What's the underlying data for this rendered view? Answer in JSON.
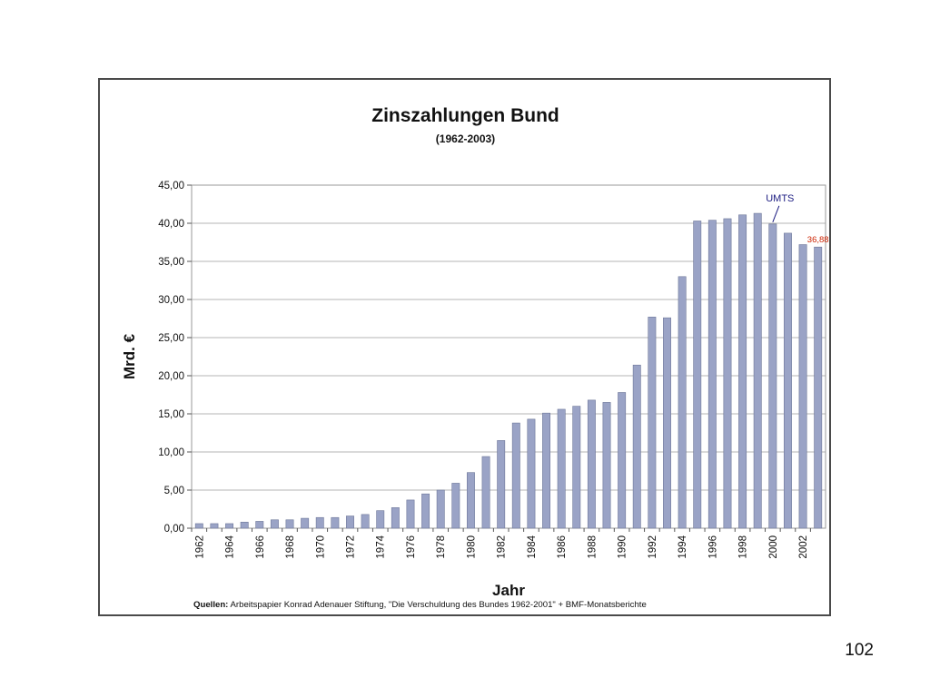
{
  "slide": {
    "page_number": "102"
  },
  "chart_data": {
    "type": "bar",
    "title": "Zinszahlungen Bund",
    "subtitle": "(1962-2003)",
    "xlabel": "Jahr",
    "ylabel": "Mrd. €",
    "ylim": [
      0,
      45
    ],
    "y_ticks": [
      "0,00",
      "5,00",
      "10,00",
      "15,00",
      "20,00",
      "25,00",
      "30,00",
      "35,00",
      "40,00",
      "45,00"
    ],
    "grid": true,
    "bar_color": "#9aa3c6",
    "categories": [
      "1962",
      "1963",
      "1964",
      "1965",
      "1966",
      "1967",
      "1968",
      "1969",
      "1970",
      "1971",
      "1972",
      "1973",
      "1974",
      "1975",
      "1976",
      "1977",
      "1978",
      "1979",
      "1980",
      "1981",
      "1982",
      "1983",
      "1984",
      "1985",
      "1986",
      "1987",
      "1988",
      "1989",
      "1990",
      "1991",
      "1992",
      "1993",
      "1994",
      "1995",
      "1996",
      "1997",
      "1998",
      "1999",
      "2000",
      "2001",
      "2002",
      "2003"
    ],
    "x_tick_labels": [
      "1962",
      "",
      "1964",
      "",
      "1966",
      "",
      "1968",
      "",
      "1970",
      "",
      "1972",
      "",
      "1974",
      "",
      "1976",
      "",
      "1978",
      "",
      "1980",
      "",
      "1982",
      "",
      "1984",
      "",
      "1986",
      "",
      "1988",
      "",
      "1990",
      "",
      "1992",
      "",
      "1994",
      "",
      "1996",
      "",
      "1998",
      "",
      "2000",
      "",
      "2002",
      ""
    ],
    "values": [
      0.6,
      0.6,
      0.6,
      0.8,
      0.9,
      1.1,
      1.1,
      1.3,
      1.4,
      1.4,
      1.6,
      1.8,
      2.3,
      2.7,
      3.7,
      4.5,
      5.0,
      5.9,
      7.3,
      9.4,
      11.5,
      13.8,
      14.3,
      15.1,
      15.6,
      16.0,
      16.8,
      16.5,
      17.8,
      21.4,
      27.7,
      27.6,
      33.0,
      40.3,
      40.4,
      40.6,
      41.1,
      41.3,
      39.9,
      38.7,
      37.2,
      36.88
    ],
    "annotations": [
      {
        "text": "UMTS",
        "year": "2000",
        "color": "#1a1a80"
      },
      {
        "text": "36,88",
        "year": "2003",
        "color": "#cc2200"
      }
    ]
  },
  "source": {
    "label": "Quellen:",
    "text": "Arbeitspapier Konrad Adenauer Stiftung, \"Die Verschuldung des Bundes 1962-2001\" + BMF-Monatsberichte"
  }
}
